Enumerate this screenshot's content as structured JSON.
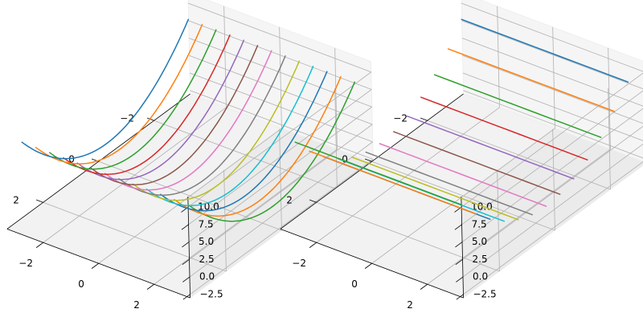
{
  "palette": [
    "#1f77b4",
    "#ff7f0e",
    "#2ca02c",
    "#d62728",
    "#9467bd",
    "#8c564b",
    "#e377c2",
    "#7f7f7f",
    "#bcbd22",
    "#17becf"
  ],
  "chart_data": [
    {
      "type": "line",
      "projection": "3d",
      "title": "",
      "xlabel": "",
      "ylabel": "",
      "zlabel": "",
      "xlim": [
        -3.3,
        3.3
      ],
      "ylim": [
        -3.3,
        3.3
      ],
      "zlim": [
        -3.0,
        11.5
      ],
      "grid": true,
      "legend": "none",
      "x_ticks": [
        "−2",
        "0",
        "2"
      ],
      "y_ticks": [
        "−2",
        "0",
        "2"
      ],
      "z_ticks": [
        "−2.5",
        "0.0",
        "2.5",
        "5.0",
        "7.5",
        "10.0"
      ],
      "series_formula": "z = x^2 at fixed y",
      "x_range": [
        -3,
        3
      ],
      "series_y_values": [
        -3,
        -2.5,
        -2,
        -1.5,
        -1,
        -0.5,
        0,
        0.5,
        1,
        1.5,
        2,
        2.5,
        3
      ]
    },
    {
      "type": "line",
      "projection": "3d",
      "title": "",
      "xlabel": "",
      "ylabel": "",
      "zlabel": "",
      "xlim": [
        -3.3,
        3.3
      ],
      "ylim": [
        -3.3,
        3.3
      ],
      "zlim": [
        -3.0,
        11.5
      ],
      "grid": true,
      "legend": "none",
      "x_ticks": [
        "−2",
        "0",
        "2"
      ],
      "y_ticks": [
        "−2",
        "0",
        "2"
      ],
      "z_ticks": [
        "−2.5",
        "0.0",
        "2.5",
        "5.0",
        "7.5",
        "10.0"
      ],
      "series_formula": "z = x^2 at fixed x, varying y",
      "y_range": [
        -3,
        3
      ],
      "series_x_values": [
        -3,
        -2.5,
        -2,
        -1.5,
        -1,
        -0.5,
        0,
        0.5,
        1,
        1.5,
        2,
        2.5,
        3
      ]
    }
  ]
}
